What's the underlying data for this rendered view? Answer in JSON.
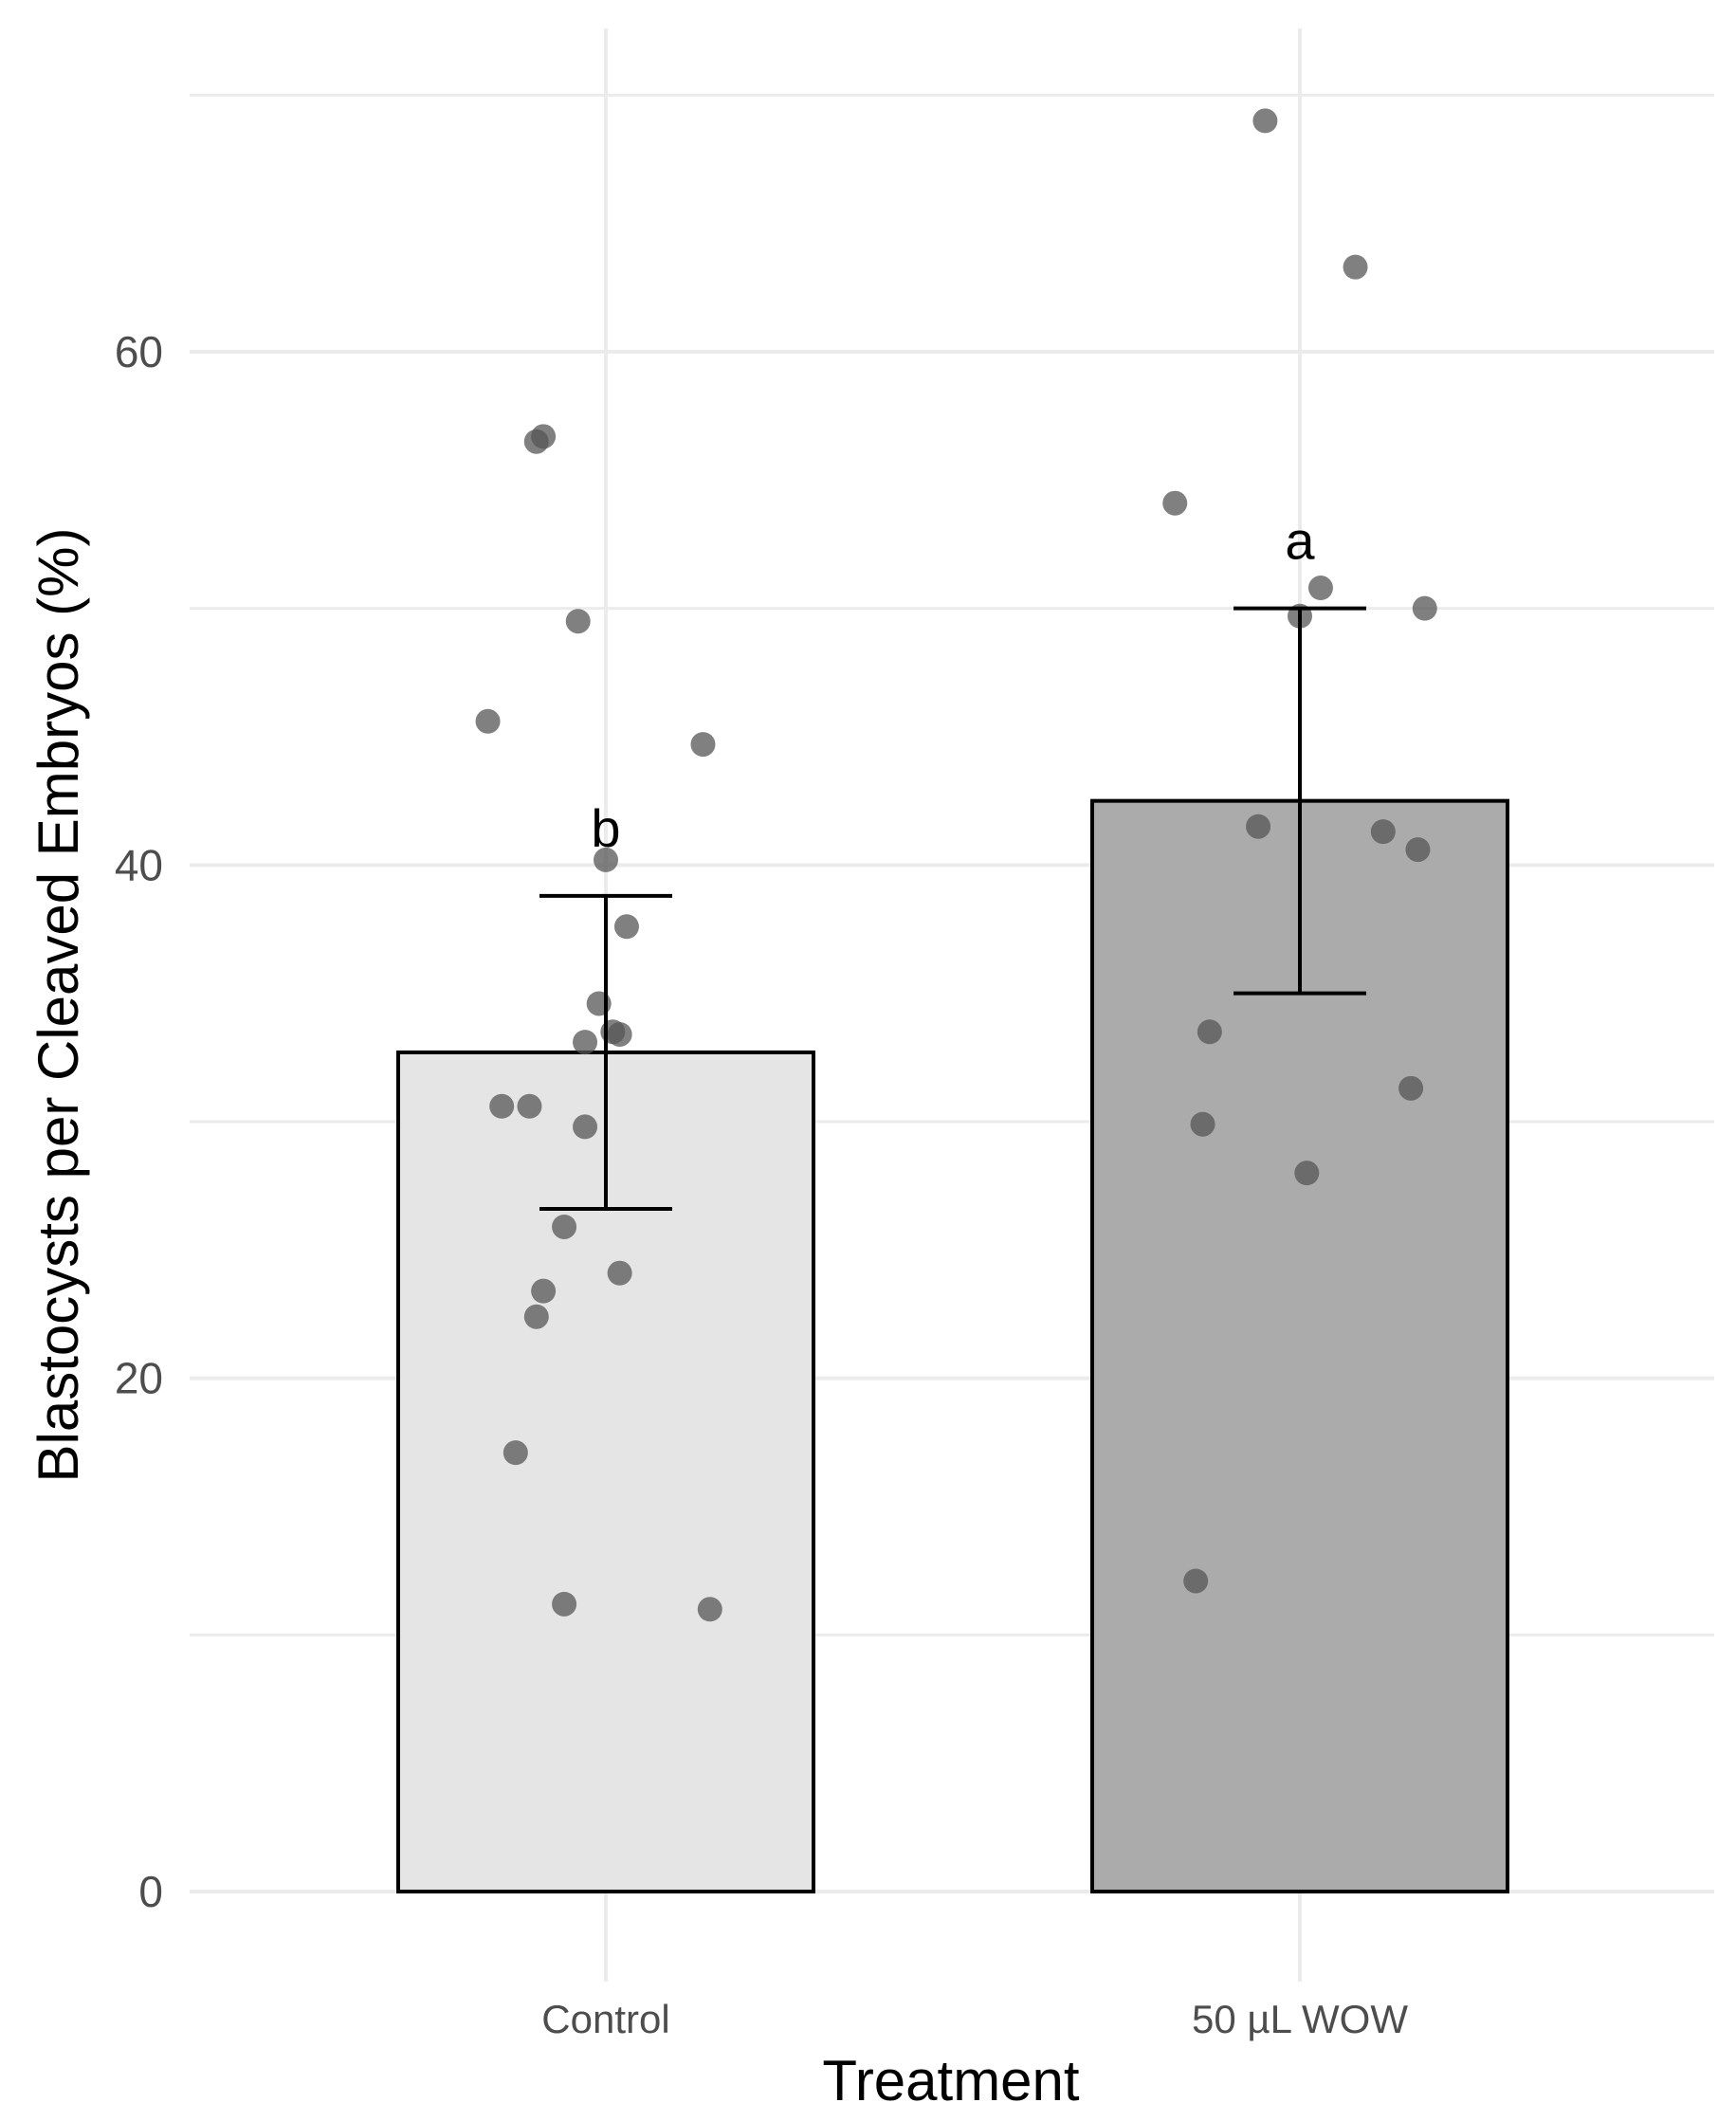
{
  "chart_data": {
    "type": "bar",
    "title": "",
    "xlabel": "Treatment",
    "ylabel": "Blastocysts per Cleaved Embryos (%)",
    "categories": [
      "Control",
      "50 µL WOW"
    ],
    "values": [
      32.7,
      42.5
    ],
    "error_low": [
      26.6,
      35.0
    ],
    "error_high": [
      38.8,
      50.0
    ],
    "significance_letters": [
      "b",
      "a"
    ],
    "bar_colors": [
      "#e5e5e5",
      "#ababab"
    ],
    "point_color": "#555555",
    "ylim": [
      0,
      70
    ],
    "yticks": [
      0,
      20,
      40,
      60
    ],
    "ytick_labels": [
      "0",
      "20",
      "40",
      "60"
    ],
    "grid": true,
    "points": [
      {
        "category": "Control",
        "jitter": -0.1,
        "y": 56.5
      },
      {
        "category": "Control",
        "jitter": -0.09,
        "y": 56.7
      },
      {
        "category": "Control",
        "jitter": -0.04,
        "y": 49.5
      },
      {
        "category": "Control",
        "jitter": -0.17,
        "y": 45.6
      },
      {
        "category": "Control",
        "jitter": 0.14,
        "y": 44.7
      },
      {
        "category": "Control",
        "jitter": 0.0,
        "y": 40.2
      },
      {
        "category": "Control",
        "jitter": 0.03,
        "y": 37.6
      },
      {
        "category": "Control",
        "jitter": -0.01,
        "y": 34.6
      },
      {
        "category": "Control",
        "jitter": 0.01,
        "y": 33.5
      },
      {
        "category": "Control",
        "jitter": 0.02,
        "y": 33.4
      },
      {
        "category": "Control",
        "jitter": -0.03,
        "y": 33.1
      },
      {
        "category": "Control",
        "jitter": -0.15,
        "y": 30.6
      },
      {
        "category": "Control",
        "jitter": -0.11,
        "y": 30.6
      },
      {
        "category": "Control",
        "jitter": -0.03,
        "y": 29.8
      },
      {
        "category": "Control",
        "jitter": -0.06,
        "y": 25.9
      },
      {
        "category": "Control",
        "jitter": 0.02,
        "y": 24.1
      },
      {
        "category": "Control",
        "jitter": -0.09,
        "y": 23.4
      },
      {
        "category": "Control",
        "jitter": -0.1,
        "y": 22.4
      },
      {
        "category": "Control",
        "jitter": -0.13,
        "y": 17.1
      },
      {
        "category": "Control",
        "jitter": -0.06,
        "y": 11.2
      },
      {
        "category": "Control",
        "jitter": 0.15,
        "y": 11.0
      },
      {
        "category": "50 µL WOW",
        "jitter": -0.05,
        "y": 69.0
      },
      {
        "category": "50 µL WOW",
        "jitter": 0.08,
        "y": 63.3
      },
      {
        "category": "50 µL WOW",
        "jitter": -0.18,
        "y": 54.1
      },
      {
        "category": "50 µL WOW",
        "jitter": 0.03,
        "y": 50.8
      },
      {
        "category": "50 µL WOW",
        "jitter": 0.18,
        "y": 50.0
      },
      {
        "category": "50 µL WOW",
        "jitter": 0.0,
        "y": 49.7
      },
      {
        "category": "50 µL WOW",
        "jitter": -0.06,
        "y": 41.5
      },
      {
        "category": "50 µL WOW",
        "jitter": 0.12,
        "y": 41.3
      },
      {
        "category": "50 µL WOW",
        "jitter": 0.17,
        "y": 40.6
      },
      {
        "category": "50 µL WOW",
        "jitter": -0.13,
        "y": 33.5
      },
      {
        "category": "50 µL WOW",
        "jitter": 0.16,
        "y": 31.3
      },
      {
        "category": "50 µL WOW",
        "jitter": -0.14,
        "y": 29.9
      },
      {
        "category": "50 µL WOW",
        "jitter": 0.01,
        "y": 28.0
      },
      {
        "category": "50 µL WOW",
        "jitter": -0.15,
        "y": 12.1
      }
    ]
  }
}
